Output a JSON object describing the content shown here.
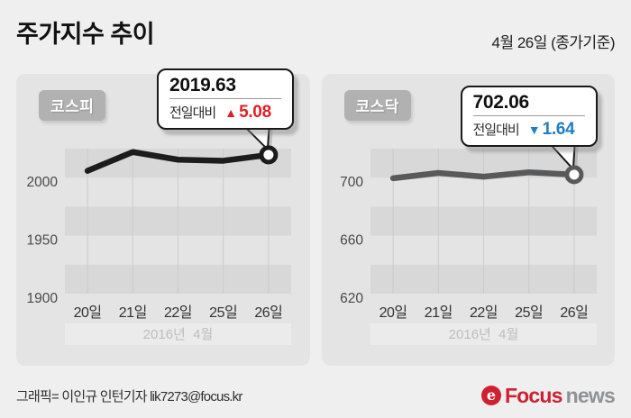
{
  "page": {
    "title": "주가지수 추이",
    "date_note": "4월 26일 (종가기준)",
    "credit": "그래픽= 이인규 인턴기자 lik7273@focus.kr",
    "logo": {
      "icon_text": "e",
      "focus": "Focus",
      "news": "news",
      "red": "#ce2130",
      "gray": "#8e9297"
    }
  },
  "colors": {
    "background": "#efefef",
    "panel": "#e4e4e4",
    "band_dark": "#d8d8d8",
    "gridline": "#cbcbcb",
    "up_red": "#e01f26",
    "down_blue": "#1d7fc1"
  },
  "chart_data": [
    {
      "type": "line",
      "name": "kospi",
      "badge": "코스피",
      "categories": [
        "20일",
        "21일",
        "22일",
        "25일",
        "26일"
      ],
      "values": [
        2005.84,
        2022.1,
        2015.49,
        2014.55,
        2019.63
      ],
      "ylim": [
        1900,
        2025
      ],
      "yticks": [
        2000,
        1950,
        1900
      ],
      "period_label": "2016년  4월",
      "line_color": "#1c1c1c",
      "callout": {
        "value": "2019.63",
        "label": "전일대비",
        "direction": "up",
        "arrow": "▲",
        "change": "5.08",
        "color": "#e01f26"
      }
    },
    {
      "type": "line",
      "name": "kosdaq",
      "badge": "코스닥",
      "categories": [
        "20일",
        "21일",
        "22일",
        "25일",
        "26일"
      ],
      "values": [
        699.59,
        703.22,
        700.68,
        703.7,
        702.06
      ],
      "ylim": [
        620,
        720
      ],
      "yticks": [
        700,
        660,
        620
      ],
      "period_label": "2016년  4월",
      "line_color": "#58595b",
      "callout": {
        "value": "702.06",
        "label": "전일대비",
        "direction": "down",
        "arrow": "▼",
        "change": "1.64",
        "color": "#1d7fc1"
      }
    }
  ]
}
